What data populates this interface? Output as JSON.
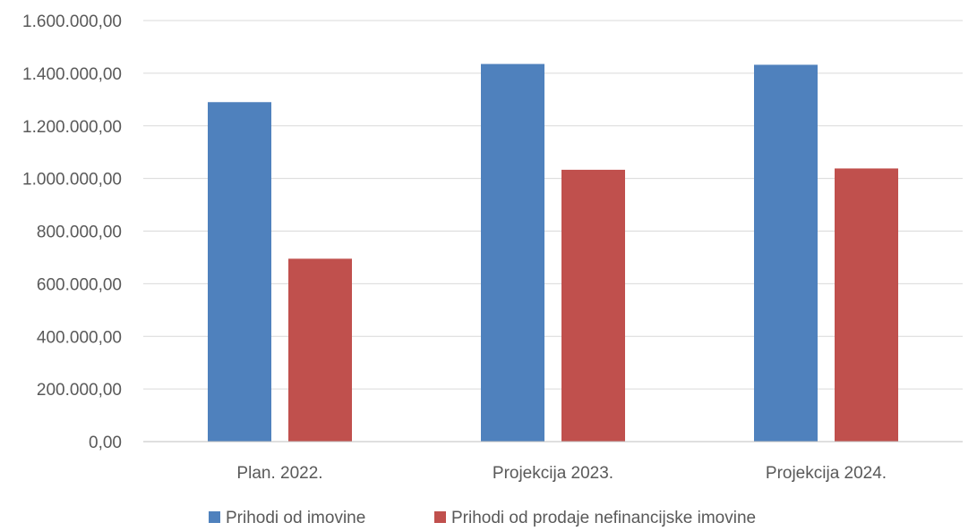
{
  "chart_data": {
    "type": "bar",
    "categories": [
      "Plan. 2022.",
      "Projekcija 2023.",
      "Projekcija 2024."
    ],
    "series": [
      {
        "name": "Prihodi od imovine",
        "color": "#4f81bd",
        "values": [
          1290000,
          1435000,
          1432000
        ]
      },
      {
        "name": "Prihodi od prodaje nefinancijske imovine",
        "color": "#c0504d",
        "values": [
          695000,
          1033000,
          1038000
        ]
      }
    ],
    "ylim": [
      0,
      1600000
    ],
    "yticks": [
      "0,00",
      "200.000,00",
      "400.000,00",
      "600.000,00",
      "800.000,00",
      "1.000.000,00",
      "1.200.000,00",
      "1.400.000,00",
      "1.600.000,00"
    ],
    "ytick_values": [
      0,
      200000,
      400000,
      600000,
      800000,
      1000000,
      1200000,
      1400000,
      1600000
    ],
    "grid": true,
    "legend": "bottom"
  }
}
